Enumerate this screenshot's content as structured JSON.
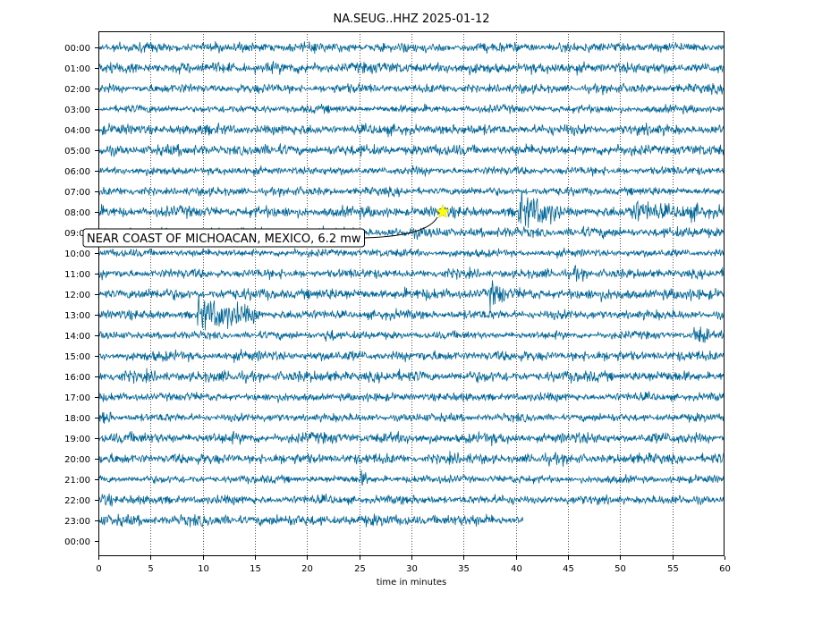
{
  "chart_data": {
    "type": "line",
    "title": "NA.SEUG..HHZ 2025-01-12",
    "xlabel": "time in minutes",
    "ylabel": "",
    "xlim": [
      0,
      60
    ],
    "x_ticks": [
      "0",
      "5",
      "10",
      "15",
      "20",
      "25",
      "30",
      "35",
      "40",
      "45",
      "50",
      "55",
      "60"
    ],
    "y_ticks": [
      "00:00",
      "01:00",
      "02:00",
      "03:00",
      "04:00",
      "05:00",
      "06:00",
      "07:00",
      "08:00",
      "09:00",
      "10:00",
      "11:00",
      "12:00",
      "13:00",
      "14:00",
      "15:00",
      "16:00",
      "17:00",
      "18:00",
      "19:00",
      "20:00",
      "21:00",
      "22:00",
      "23:00",
      "00:00"
    ],
    "grid": "vertical dotted lines at each x tick",
    "trace_color": "#006699",
    "trace_last_row_end_minute": 40.7,
    "event_bursts": [
      {
        "hour": 8,
        "minute": 40.2,
        "duration": 4,
        "amp": 2.2
      },
      {
        "hour": 8,
        "minute": 51,
        "duration": 7,
        "amp": 1.2
      },
      {
        "hour": 12,
        "minute": 37.5,
        "duration": 1.5,
        "amp": 1.6
      },
      {
        "hour": 13,
        "minute": 9.5,
        "duration": 6,
        "amp": 2.6
      },
      {
        "hour": 14,
        "minute": 21.5,
        "duration": 1.5,
        "amp": 1.8
      },
      {
        "hour": 14,
        "minute": 57,
        "duration": 1.5,
        "amp": 2.0
      },
      {
        "hour": 11,
        "minute": 45.5,
        "duration": 1.5,
        "amp": 1.2
      },
      {
        "hour": 21,
        "minute": 25,
        "duration": 1,
        "amp": 1.3
      },
      {
        "hour": 18,
        "minute": 0.3,
        "duration": 1,
        "amp": 1.4
      },
      {
        "hour": 22,
        "minute": 0.3,
        "duration": 1,
        "amp": 1.3
      }
    ],
    "event_marker": {
      "hour": 8,
      "minute": 33,
      "marker_color": "#ffff00",
      "label": "NEAR COAST OF MICHOACAN, MEXICO, 6.2 mw"
    }
  }
}
